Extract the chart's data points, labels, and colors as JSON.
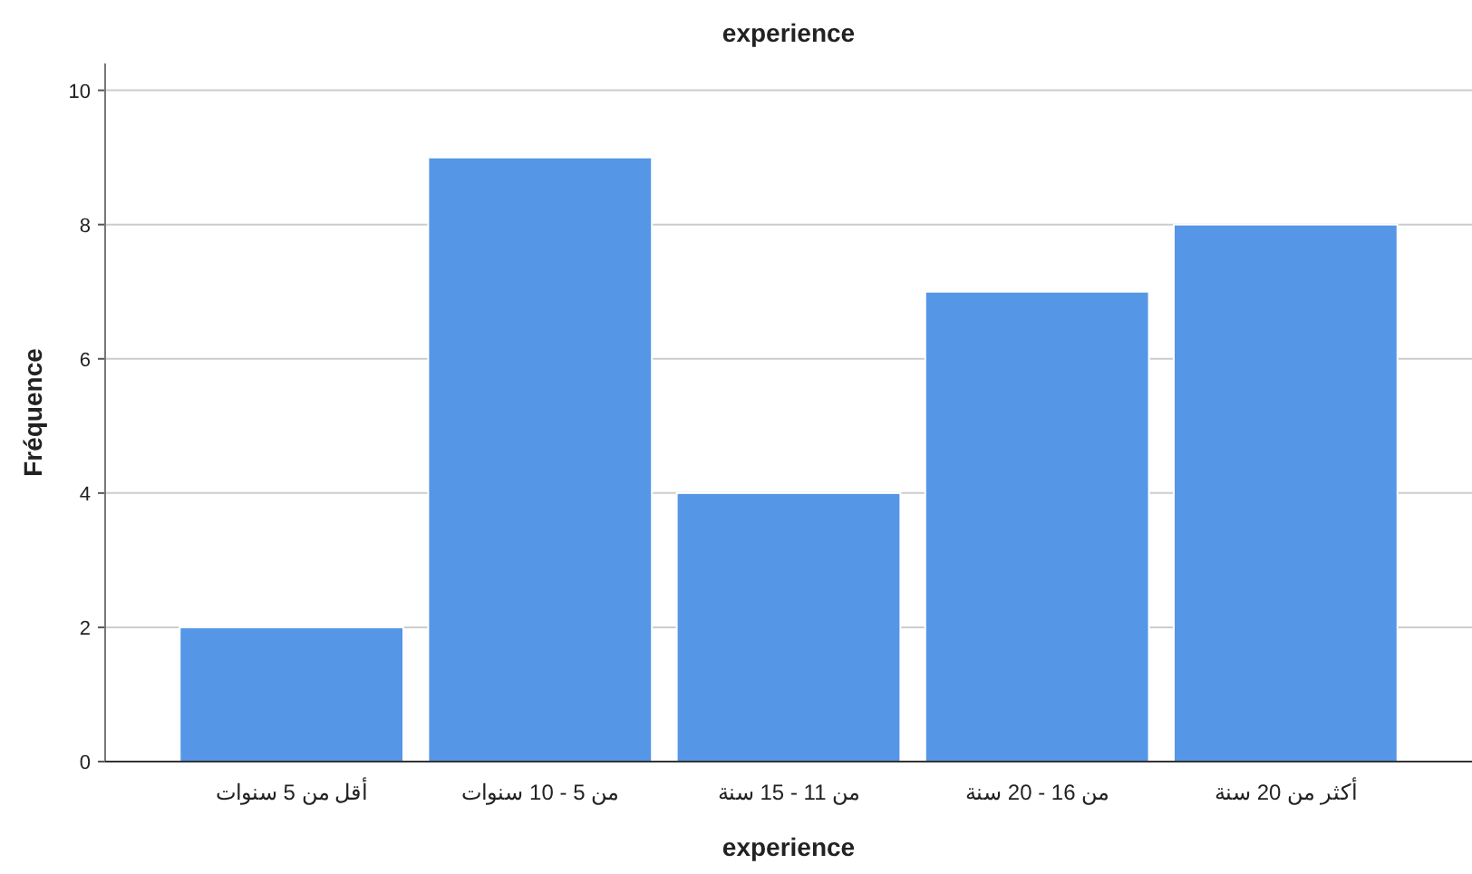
{
  "chart_data": {
    "type": "bar",
    "title": "experience",
    "xlabel": "experience",
    "ylabel": "Fréquence",
    "categories": [
      "أقل من 5 سنوات",
      "من 5 - 10 سنوات",
      "من 11 - 15 سنة",
      "من 16 - 20 سنة",
      "أكثر من 20 سنة"
    ],
    "values": [
      2,
      9,
      4,
      7,
      8
    ],
    "color": "#5596e6",
    "ylim": [
      0,
      10.4
    ],
    "yticks": [
      0,
      2,
      4,
      6,
      8,
      10
    ],
    "grid": "y"
  }
}
